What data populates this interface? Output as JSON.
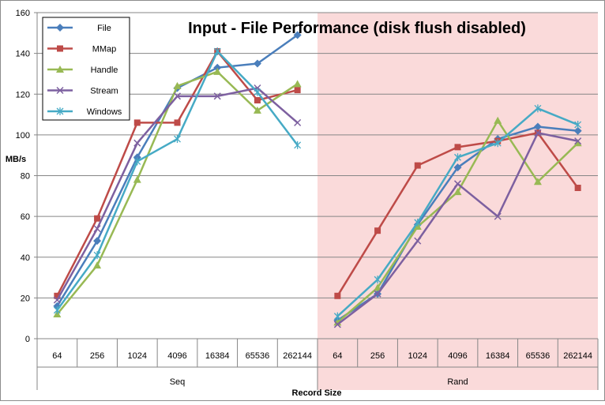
{
  "chart_data": {
    "type": "line",
    "title": "Input - File Performance (disk flush disabled)",
    "xlabel": "Record Size",
    "ylabel": "MB/s",
    "ylim": [
      0,
      160
    ],
    "yticks": [
      0,
      20,
      40,
      60,
      80,
      100,
      120,
      140,
      160
    ],
    "groups": [
      {
        "name": "Seq",
        "categories": [
          "64",
          "256",
          "1024",
          "4096",
          "16384",
          "65536",
          "262144"
        ],
        "highlight": "none"
      },
      {
        "name": "Rand",
        "categories": [
          "64",
          "256",
          "1024",
          "4096",
          "16384",
          "65536",
          "262144"
        ],
        "highlight": "#fadada"
      }
    ],
    "grid": "horizontal",
    "legend_position": "top-left",
    "series": [
      {
        "name": "File",
        "color": "#4a7ebb",
        "marker": "diamond",
        "seq": [
          16,
          48,
          89,
          123,
          133,
          135,
          149
        ],
        "rand": [
          9,
          22,
          56,
          84,
          98,
          104,
          102
        ]
      },
      {
        "name": "MMap",
        "color": "#be4b48",
        "marker": "square",
        "seq": [
          21,
          59,
          106,
          106,
          141,
          117,
          122
        ],
        "rand": [
          21,
          53,
          85,
          94,
          97,
          101,
          74
        ]
      },
      {
        "name": "Handle",
        "color": "#98b954",
        "marker": "triangle",
        "seq": [
          12,
          36,
          78,
          124,
          131,
          112,
          125
        ],
        "rand": [
          8,
          25,
          55,
          72,
          107,
          77,
          96
        ]
      },
      {
        "name": "Stream",
        "color": "#7d60a0",
        "marker": "x",
        "seq": [
          19,
          54,
          96,
          119,
          119,
          123,
          106
        ],
        "rand": [
          7,
          22,
          48,
          76,
          60,
          101,
          97
        ]
      },
      {
        "name": "Windows",
        "color": "#46aac5",
        "marker": "star",
        "seq": [
          14,
          41,
          87,
          98,
          141,
          121,
          95
        ],
        "rand": [
          11,
          29,
          57,
          89,
          96,
          113,
          105
        ]
      }
    ]
  }
}
